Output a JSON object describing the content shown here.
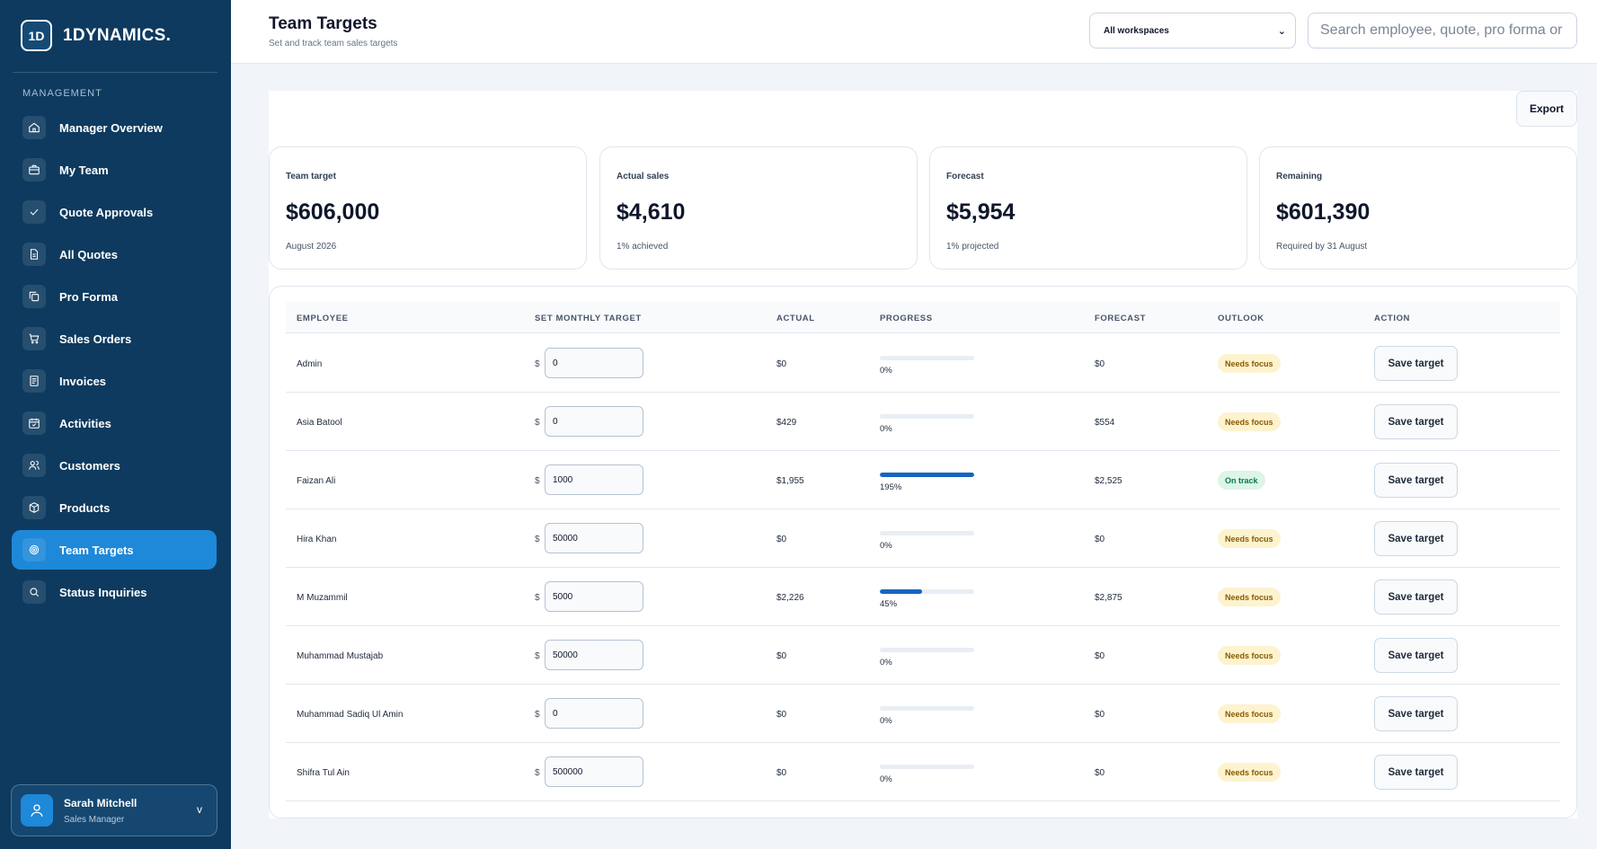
{
  "brand": {
    "logo": "1D",
    "name": "1DYNAMICS."
  },
  "sidebar": {
    "section_label": "MANAGEMENT",
    "items": [
      {
        "label": "Manager Overview",
        "icon": "home-icon"
      },
      {
        "label": "My Team",
        "icon": "briefcase-icon"
      },
      {
        "label": "Quote Approvals",
        "icon": "check-icon"
      },
      {
        "label": "All Quotes",
        "icon": "document-icon"
      },
      {
        "label": "Pro Forma",
        "icon": "copy-icon"
      },
      {
        "label": "Sales Orders",
        "icon": "cart-icon"
      },
      {
        "label": "Invoices",
        "icon": "invoice-icon"
      },
      {
        "label": "Activities",
        "icon": "calendar-icon"
      },
      {
        "label": "Customers",
        "icon": "users-icon"
      },
      {
        "label": "Products",
        "icon": "box-icon"
      },
      {
        "label": "Team Targets",
        "icon": "target-icon",
        "active": true
      },
      {
        "label": "Status Inquiries",
        "icon": "search-icon"
      }
    ],
    "user": {
      "name": "Sarah Mitchell",
      "role": "Sales Manager",
      "chevron": "v"
    }
  },
  "header": {
    "title": "Team Targets",
    "subtitle": "Set and track team sales targets",
    "workspace_select": "All workspaces",
    "search_placeholder": "Search employee, quote, pro forma or"
  },
  "toolbar": {
    "export_label": "Export"
  },
  "stats": [
    {
      "label": "Team target",
      "value": "$606,000",
      "note": "August 2026"
    },
    {
      "label": "Actual sales",
      "value": "$4,610",
      "note": "1% achieved"
    },
    {
      "label": "Forecast",
      "value": "$5,954",
      "note": "1% projected"
    },
    {
      "label": "Remaining",
      "value": "$601,390",
      "note": "Required by 31 August"
    }
  ],
  "table": {
    "columns": [
      "EMPLOYEE",
      "SET MONTHLY TARGET",
      "ACTUAL",
      "PROGRESS",
      "FORECAST",
      "OUTLOOK",
      "ACTION"
    ],
    "currency_symbol": "$",
    "save_label": "Save target",
    "rows": [
      {
        "employee": "Admin",
        "target": "0",
        "actual": "$0",
        "progress_fraction": 0,
        "progress_label": "0%",
        "forecast": "$0",
        "outlook": "Needs focus",
        "status": "warn"
      },
      {
        "employee": "Asia Batool",
        "target": "0",
        "actual": "$429",
        "progress_fraction": 0,
        "progress_label": "0%",
        "forecast": "$554",
        "outlook": "Needs focus",
        "status": "warn"
      },
      {
        "employee": "Faizan Ali",
        "target": "1000",
        "actual": "$1,955",
        "progress_fraction": 1,
        "progress_label": "195%",
        "forecast": "$2,525",
        "outlook": "On track",
        "status": "ok"
      },
      {
        "employee": "Hira Khan",
        "target": "50000",
        "actual": "$0",
        "progress_fraction": 0,
        "progress_label": "0%",
        "forecast": "$0",
        "outlook": "Needs focus",
        "status": "warn"
      },
      {
        "employee": "M Muzammil",
        "target": "5000",
        "actual": "$2,226",
        "progress_fraction": 0.45,
        "progress_label": "45%",
        "forecast": "$2,875",
        "outlook": "Needs focus",
        "status": "warn"
      },
      {
        "employee": "Muhammad Mustajab",
        "target": "50000",
        "actual": "$0",
        "progress_fraction": 0,
        "progress_label": "0%",
        "forecast": "$0",
        "outlook": "Needs focus",
        "status": "warn"
      },
      {
        "employee": "Muhammad Sadiq Ul Amin",
        "target": "0",
        "actual": "$0",
        "progress_fraction": 0,
        "progress_label": "0%",
        "forecast": "$0",
        "outlook": "Needs focus",
        "status": "warn"
      },
      {
        "employee": "Shifra Tul Ain",
        "target": "500000",
        "actual": "$0",
        "progress_fraction": 0,
        "progress_label": "0%",
        "forecast": "$0",
        "outlook": "Needs focus",
        "status": "warn"
      }
    ]
  },
  "colors": {
    "sidebar": "#0e3a5f",
    "accent": "#1e88d9",
    "progress": "#1565c0",
    "warn_badge": "#fdf3cf",
    "ok_badge": "#dcf5e8"
  }
}
